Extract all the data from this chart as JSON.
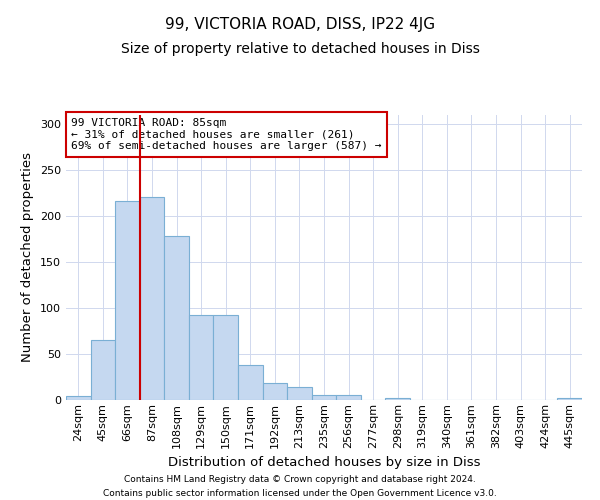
{
  "title": "99, VICTORIA ROAD, DISS, IP22 4JG",
  "subtitle": "Size of property relative to detached houses in Diss",
  "xlabel": "Distribution of detached houses by size in Diss",
  "ylabel": "Number of detached properties",
  "categories": [
    "24sqm",
    "45sqm",
    "66sqm",
    "87sqm",
    "108sqm",
    "129sqm",
    "150sqm",
    "171sqm",
    "192sqm",
    "213sqm",
    "235sqm",
    "256sqm",
    "277sqm",
    "298sqm",
    "319sqm",
    "340sqm",
    "361sqm",
    "382sqm",
    "403sqm",
    "424sqm",
    "445sqm"
  ],
  "values": [
    4,
    65,
    216,
    221,
    178,
    93,
    93,
    38,
    19,
    14,
    5,
    5,
    0,
    2,
    0,
    0,
    0,
    0,
    0,
    0,
    2
  ],
  "bar_color": "#c5d8f0",
  "bar_edge_color": "#7aafd4",
  "vline_x_index": 3,
  "vline_color": "#cc0000",
  "ylim": [
    0,
    310
  ],
  "yticks": [
    0,
    50,
    100,
    150,
    200,
    250,
    300
  ],
  "annotation_text": "99 VICTORIA ROAD: 85sqm\n← 31% of detached houses are smaller (261)\n69% of semi-detached houses are larger (587) →",
  "annotation_box_color": "#ffffff",
  "annotation_box_edge": "#cc0000",
  "footer_line1": "Contains HM Land Registry data © Crown copyright and database right 2024.",
  "footer_line2": "Contains public sector information licensed under the Open Government Licence v3.0.",
  "title_fontsize": 11,
  "subtitle_fontsize": 10,
  "axis_label_fontsize": 9.5,
  "tick_fontsize": 8,
  "annotation_fontsize": 8,
  "footer_fontsize": 6.5,
  "background_color": "#ffffff",
  "grid_color": "#d0d8ee"
}
